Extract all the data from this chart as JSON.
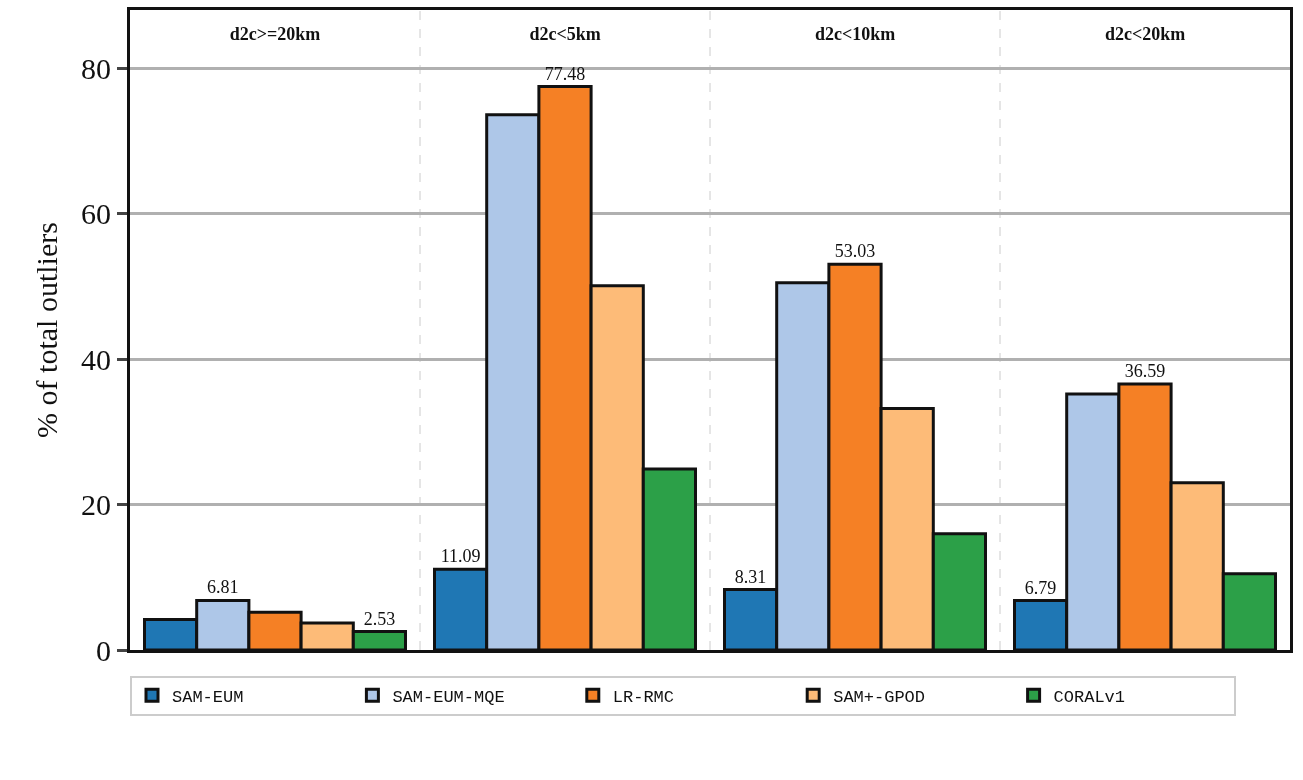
{
  "chart_data": {
    "type": "bar",
    "ylabel": "% of total outliers",
    "categories": [
      "d2c>=20km",
      "d2c<5km",
      "d2c<10km",
      "d2c<20km"
    ],
    "series": [
      {
        "name": "SAM-EUM",
        "color": "#1f77b4",
        "values": [
          4.2,
          11.09,
          8.31,
          6.79
        ],
        "value_labels": [
          null,
          "11.09",
          "8.31",
          "6.79"
        ]
      },
      {
        "name": "SAM-EUM-MQE",
        "color": "#aec7e8",
        "values": [
          6.81,
          73.6,
          50.5,
          35.2
        ],
        "value_labels": [
          "6.81",
          null,
          null,
          null
        ]
      },
      {
        "name": "LR-RMC",
        "color": "#f58025",
        "values": [
          5.2,
          77.48,
          53.03,
          36.59
        ],
        "value_labels": [
          null,
          "77.48",
          "53.03",
          "36.59"
        ]
      },
      {
        "name": "SAM+-GPOD",
        "color": "#fdbb78",
        "values": [
          3.7,
          50.1,
          33.2,
          23.0
        ],
        "value_labels": [
          null,
          null,
          null,
          null
        ]
      },
      {
        "name": "CORALv1",
        "color": "#2ca048",
        "values": [
          2.53,
          24.9,
          16.0,
          10.5
        ],
        "value_labels": [
          "2.53",
          null,
          null,
          null
        ]
      }
    ],
    "ylim": [
      0,
      88
    ],
    "yticks": [
      0,
      20,
      40,
      60,
      80
    ],
    "grid": "y",
    "legend": "bottom"
  }
}
